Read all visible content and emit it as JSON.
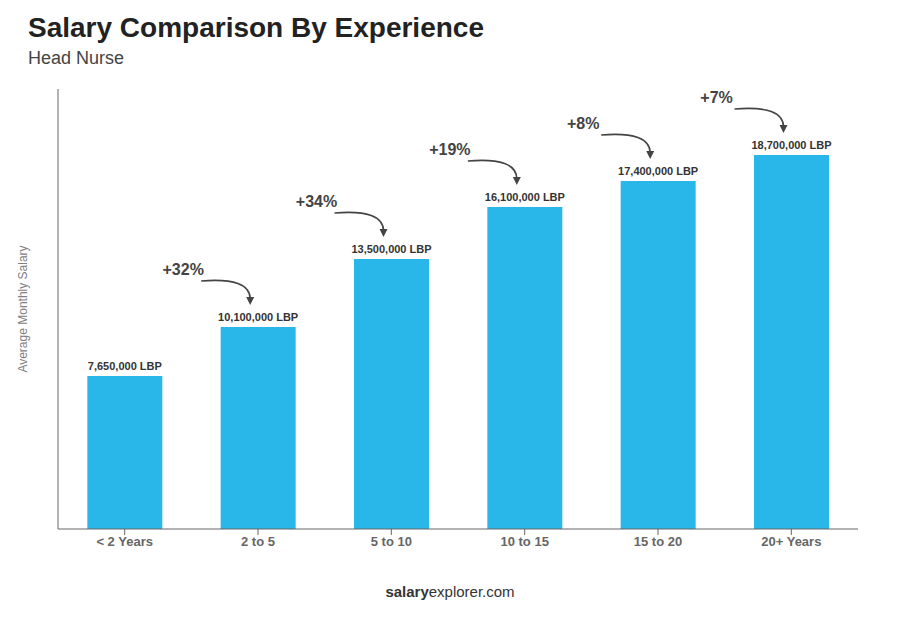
{
  "chart_data": {
    "type": "bar",
    "title": "Salary Comparison By Experience",
    "subtitle": "Head Nurse",
    "ylabel": "Average Monthly Salary",
    "categories": [
      "< 2 Years",
      "2 to 5",
      "5 to 10",
      "10 to 15",
      "15 to 20",
      "20+ Years"
    ],
    "values": [
      7650000,
      10100000,
      13500000,
      16100000,
      17400000,
      18700000
    ],
    "value_labels": [
      "7,650,000 LBP",
      "10,100,000 LBP",
      "13,500,000 LBP",
      "16,100,000 LBP",
      "17,400,000 LBP",
      "18,700,000 LBP"
    ],
    "data_labels": true,
    "annotations": [
      "+32%",
      "+34%",
      "+19%",
      "+8%",
      "+7%"
    ],
    "source": [
      "salary",
      "explorer.com"
    ],
    "color": "#29b6e8",
    "ylim": [
      0,
      22000000
    ],
    "tick_labels": "x",
    "grid": false
  }
}
